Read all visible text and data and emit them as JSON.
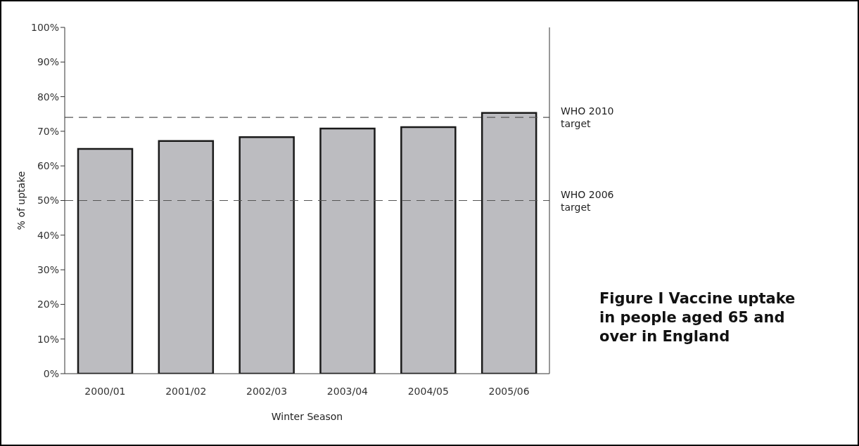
{
  "chart_data": {
    "type": "bar",
    "title": "Figure I Vaccine uptake in people aged 65 and over in England",
    "xlabel": "Winter Season",
    "ylabel": "% of uptake",
    "categories": [
      "2000/01",
      "2001/02",
      "2002/03",
      "2003/04",
      "2004/05",
      "2005/06"
    ],
    "values": [
      64.9,
      67.2,
      68.3,
      70.8,
      71.2,
      75.3
    ],
    "color": "#bcbcc0",
    "ylim": [
      0,
      100
    ],
    "yticks": [
      {
        "value": 0,
        "label": "0%"
      },
      {
        "value": 10,
        "label": "10%"
      },
      {
        "value": 20,
        "label": "20%"
      },
      {
        "value": 30,
        "label": "30%"
      },
      {
        "value": 40,
        "label": "40%"
      },
      {
        "value": 50,
        "label": "50%"
      },
      {
        "value": 60,
        "label": "60%"
      },
      {
        "value": 70,
        "label": "70%"
      },
      {
        "value": 80,
        "label": "80%"
      },
      {
        "value": 90,
        "label": "90%"
      },
      {
        "value": 100,
        "label": "100%"
      }
    ],
    "ref_lines": [
      {
        "axis": "y",
        "value": 74,
        "label": "WHO 2010 target",
        "line_style": "dashed",
        "color": "#555555"
      },
      {
        "axis": "y",
        "value": 50,
        "label": "WHO 2006 target",
        "line_style": "dashed",
        "color": "#555555"
      }
    ]
  }
}
